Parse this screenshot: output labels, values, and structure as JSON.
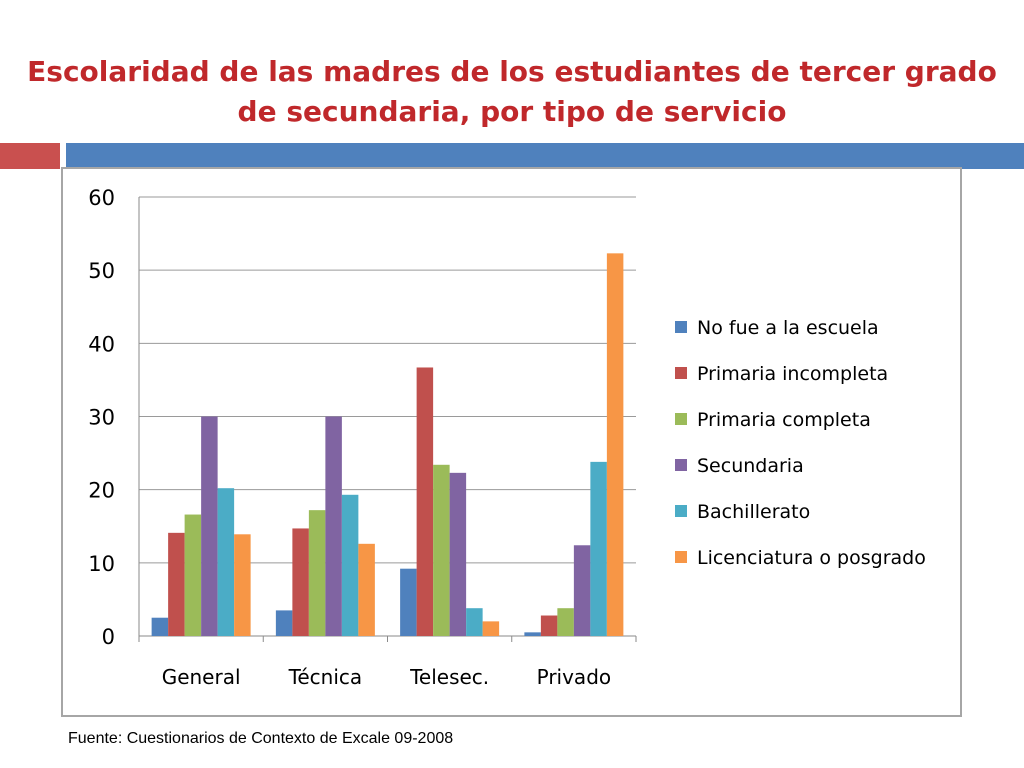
{
  "slide": {
    "title_line1": "Escolaridad de las madres de los estudiantes de tercer grado",
    "title_line2": "de secundaria, por tipo de servicio",
    "source": "Fuente: Cuestionarios de Contexto de Excale 09-2008",
    "accent_red": "#c9504f",
    "accent_blue": "#4f81bd",
    "title_color": "#c0282b"
  },
  "chart_data": {
    "type": "bar",
    "title": "",
    "xlabel": "",
    "ylabel": "",
    "ylim": [
      0,
      60
    ],
    "yticks": [
      0,
      10,
      20,
      30,
      40,
      50,
      60
    ],
    "grid": true,
    "legend_position": "right",
    "categories": [
      "General",
      "Técnica",
      "Telesec.",
      "Privado"
    ],
    "series": [
      {
        "name": "No fue a la escuela",
        "color": "#4f81bd",
        "values": [
          2.5,
          3.5,
          9.2,
          0.5
        ]
      },
      {
        "name": "Primaria incompleta",
        "color": "#c0504d",
        "values": [
          14.1,
          14.7,
          36.7,
          2.8
        ]
      },
      {
        "name": "Primaria completa",
        "color": "#9bbb59",
        "values": [
          16.6,
          17.2,
          23.4,
          3.8
        ]
      },
      {
        "name": "Secundaria",
        "color": "#8064a2",
        "values": [
          30.0,
          30.0,
          22.3,
          12.4
        ]
      },
      {
        "name": "Bachillerato",
        "color": "#4bacc6",
        "values": [
          20.2,
          19.3,
          3.8,
          23.8
        ]
      },
      {
        "name": "Licenciatura o posgrado",
        "color": "#f79646",
        "values": [
          13.9,
          12.6,
          2.0,
          52.3
        ]
      }
    ]
  }
}
